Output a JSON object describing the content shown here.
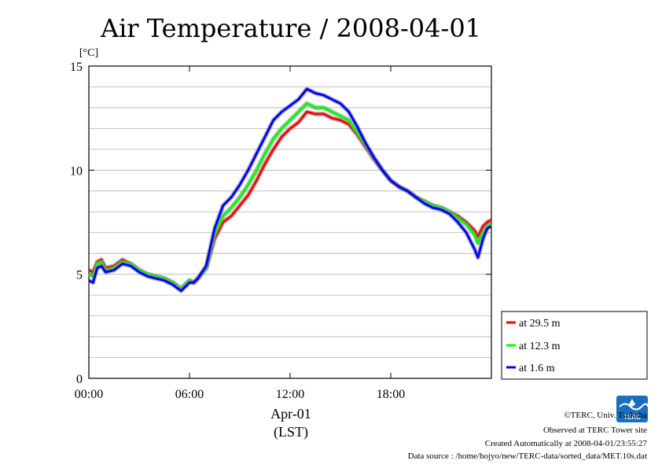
{
  "chart_data": {
    "type": "line",
    "title": "Air Temperature / 2008-04-01",
    "ylabel": "[°C]",
    "xlabel": "Apr-01",
    "xlabel_sub": "(LST)",
    "x_ticks": [
      "00:00",
      "06:00",
      "12:00",
      "18:00"
    ],
    "y_ticks": [
      "0",
      "5",
      "10",
      "15"
    ],
    "xlim": [
      0,
      24
    ],
    "ylim": [
      0,
      15
    ],
    "grid": true,
    "legend_position": "right-bottom",
    "x": [
      0,
      0.25,
      0.5,
      0.75,
      1,
      1.5,
      2,
      2.5,
      3,
      3.5,
      4,
      4.5,
      5,
      5.5,
      6,
      6.25,
      6.5,
      7,
      7.5,
      8,
      8.5,
      9,
      9.5,
      10,
      10.5,
      11,
      11.5,
      12,
      12.5,
      13,
      13.5,
      14,
      14.5,
      15,
      15.5,
      16,
      16.5,
      17,
      17.5,
      18,
      18.5,
      19,
      19.5,
      20,
      20.5,
      21,
      21.5,
      22,
      22.5,
      23,
      23.2,
      23.5,
      23.75,
      24
    ],
    "series": [
      {
        "name": "at 29.5 m",
        "color": "#ff0000",
        "values": [
          5.2,
          5.1,
          5.6,
          5.7,
          5.3,
          5.4,
          5.7,
          5.5,
          5.2,
          5.0,
          4.9,
          4.8,
          4.6,
          4.3,
          4.7,
          4.6,
          4.8,
          5.3,
          6.7,
          7.5,
          7.8,
          8.3,
          8.8,
          9.5,
          10.3,
          11.0,
          11.6,
          12.0,
          12.3,
          12.8,
          12.7,
          12.7,
          12.5,
          12.4,
          12.2,
          11.7,
          11.1,
          10.5,
          10.0,
          9.5,
          9.2,
          9.0,
          8.7,
          8.5,
          8.3,
          8.2,
          8.0,
          7.8,
          7.5,
          7.1,
          6.8,
          7.3,
          7.5,
          7.6
        ]
      },
      {
        "name": "at 12.3 m",
        "color": "#00ff00",
        "values": [
          5.0,
          4.9,
          5.5,
          5.6,
          5.2,
          5.3,
          5.6,
          5.5,
          5.2,
          5.0,
          4.9,
          4.8,
          4.6,
          4.3,
          4.7,
          4.6,
          4.8,
          5.3,
          6.9,
          7.8,
          8.2,
          8.7,
          9.3,
          10.0,
          10.8,
          11.5,
          12.0,
          12.4,
          12.8,
          13.2,
          13.0,
          13.0,
          12.8,
          12.6,
          12.4,
          11.8,
          11.2,
          10.6,
          10.0,
          9.5,
          9.2,
          9.0,
          8.7,
          8.5,
          8.3,
          8.2,
          8.0,
          7.7,
          7.4,
          6.9,
          6.5,
          7.0,
          7.3,
          7.4
        ]
      },
      {
        "name": "at 1.6 m",
        "color": "#0000ff",
        "values": [
          4.7,
          4.6,
          5.3,
          5.4,
          5.1,
          5.2,
          5.5,
          5.4,
          5.1,
          4.9,
          4.8,
          4.7,
          4.5,
          4.2,
          4.6,
          4.6,
          4.8,
          5.4,
          7.2,
          8.3,
          8.7,
          9.3,
          10.0,
          10.8,
          11.6,
          12.4,
          12.8,
          13.1,
          13.4,
          13.9,
          13.7,
          13.6,
          13.4,
          13.2,
          12.8,
          12.1,
          11.3,
          10.6,
          10.0,
          9.5,
          9.2,
          9.0,
          8.7,
          8.4,
          8.2,
          8.1,
          7.9,
          7.5,
          7.0,
          6.2,
          5.8,
          6.7,
          7.2,
          7.3
        ]
      }
    ]
  },
  "legend": {
    "items": [
      "at 29.5 m",
      "at 12.3 m",
      "at 1.6 m"
    ]
  },
  "credits": {
    "line1": "©TERC, Univ. Tsukuba",
    "line2": "Observed at TERC Tower site",
    "line3": "Created Automatically at 2008-04-01/23:55:27",
    "line4": "Data source : /home/hojyo/new/TERC-data/sorted_data/MET.10s.dat"
  },
  "logo": {
    "text": "TERC",
    "color": "#1a6fc0"
  }
}
